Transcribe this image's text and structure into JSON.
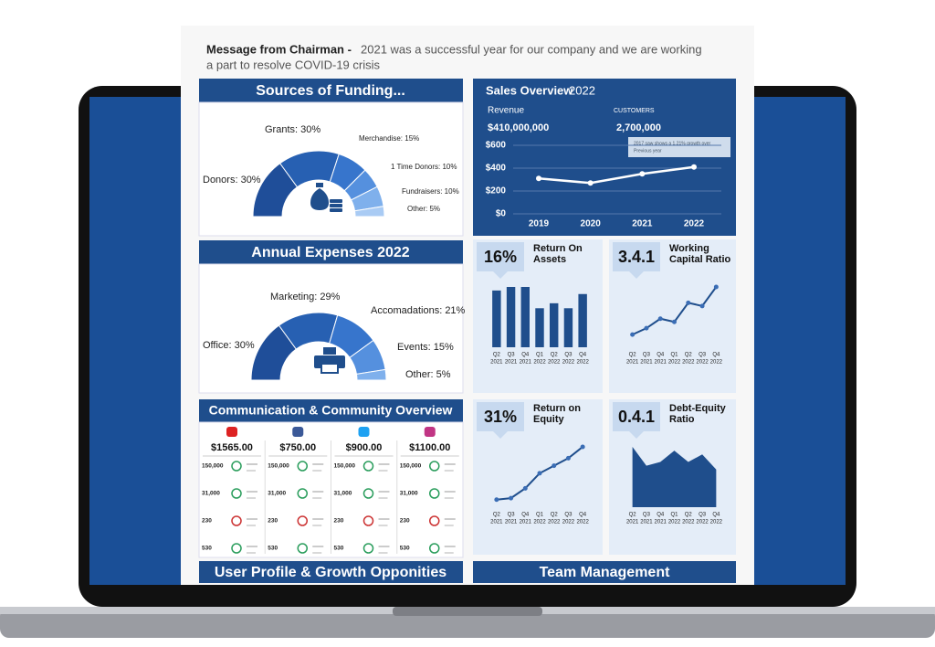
{
  "message": {
    "label": "Message from Chairman -",
    "text_lines": [
      "2021 was a successful year for our company and we are working",
      "a part to resolve COVID-19 crisis"
    ]
  },
  "funding": {
    "title": "Sources of Funding...",
    "slices": [
      {
        "label": "Donors: 30%",
        "value": 30
      },
      {
        "label": "Grants: 30%",
        "value": 30
      },
      {
        "label": "Merchandise: 15%",
        "value": 15
      },
      {
        "label": "1 Time Donors: 10%",
        "value": 10
      },
      {
        "label": "Fundraisers: 10%",
        "value": 10
      },
      {
        "label": "Other: 5%",
        "value": 5
      }
    ]
  },
  "expenses": {
    "title": "Annual Expenses 2022",
    "slices": [
      {
        "label": "Office: 30%",
        "value": 30
      },
      {
        "label": "Marketing: 29%",
        "value": 29
      },
      {
        "label": "Accomadations: 21%",
        "value": 21
      },
      {
        "label": "Events: 15%",
        "value": 15
      },
      {
        "label": "Other: 5%",
        "value": 5
      }
    ]
  },
  "communication": {
    "title": "Communication & Community Overview",
    "platforms": [
      {
        "amount": "$1565.00",
        "stats": [
          "150,000",
          "31,000",
          "230",
          "530"
        ]
      },
      {
        "amount": "$750.00",
        "stats": [
          "150,000",
          "31,000",
          "230",
          "530"
        ]
      },
      {
        "amount": "$900.00",
        "stats": [
          "150,000",
          "31,000",
          "230",
          "530"
        ]
      },
      {
        "amount": "$1100.00",
        "stats": [
          "150,000",
          "31,000",
          "230",
          "530"
        ]
      }
    ]
  },
  "sections": {
    "user_profile": "User Profile & Growth Opponities",
    "team": "Team Management"
  },
  "sales": {
    "type": "line",
    "title": "Sales Overview",
    "year": "2022",
    "revenue_label": "Revenue",
    "revenue": "$410,000,000",
    "customers_label": "CUSTOMERS",
    "customers": "2,700,000",
    "annotation": [
      "2017 saw shows a 1.21% growth over",
      "Previous year"
    ],
    "x": [
      "2019",
      "2020",
      "2021",
      "2022"
    ],
    "values": [
      310,
      270,
      350,
      410
    ],
    "color": "#ffffff",
    "ylim": [
      0,
      600
    ],
    "yticks": [
      {
        "value": 0,
        "label": "$0"
      },
      {
        "value": 200,
        "label": "$200"
      },
      {
        "value": 400,
        "label": "$400"
      },
      {
        "value": 600,
        "label": "$600"
      }
    ]
  },
  "kpis": [
    {
      "type": "bar",
      "value": "16%",
      "title": [
        "Return On",
        "Assets"
      ],
      "color": "#1f4e8c",
      "quarters": [
        "Q2",
        "Q3",
        "Q4",
        "Q1",
        "Q2",
        "Q3",
        "Q4"
      ],
      "years": [
        "2021",
        "2021",
        "2021",
        "2022",
        "2022",
        "2022",
        "2022"
      ],
      "values": [
        80,
        85,
        85,
        55,
        62,
        55,
        75
      ]
    },
    {
      "type": "line",
      "value": "3.4.1",
      "title": [
        "Working",
        "Capital Ratio"
      ],
      "color": "#1f4e8c",
      "quarters": [
        "Q2",
        "Q3",
        "Q4",
        "Q1",
        "Q2",
        "Q3",
        "Q4"
      ],
      "years": [
        "2021",
        "2021",
        "2021",
        "2022",
        "2022",
        "2022",
        "2022"
      ],
      "values": [
        20,
        30,
        45,
        40,
        70,
        65,
        95
      ]
    },
    {
      "type": "line",
      "value": "31%",
      "title": [
        "Return on",
        "Equity"
      ],
      "color": "#1f4e8c",
      "quarters": [
        "Q2",
        "Q3",
        "Q4",
        "Q1",
        "Q2",
        "Q3",
        "Q4"
      ],
      "years": [
        "2021",
        "2021",
        "2021",
        "2022",
        "2022",
        "2022",
        "2022"
      ],
      "values": [
        10,
        12,
        25,
        45,
        55,
        65,
        80
      ]
    },
    {
      "type": "area",
      "value": "0.4.1",
      "title": [
        "Debt-Equity",
        "Ratio"
      ],
      "color": "#1f4e8c",
      "quarters": [
        "Q2",
        "Q3",
        "Q4",
        "Q1",
        "Q2",
        "Q3",
        "Q4"
      ],
      "years": [
        "2021",
        "2021",
        "2021",
        "2022",
        "2022",
        "2022",
        "2022"
      ],
      "values": [
        80,
        55,
        60,
        75,
        60,
        70,
        50
      ]
    }
  ]
}
